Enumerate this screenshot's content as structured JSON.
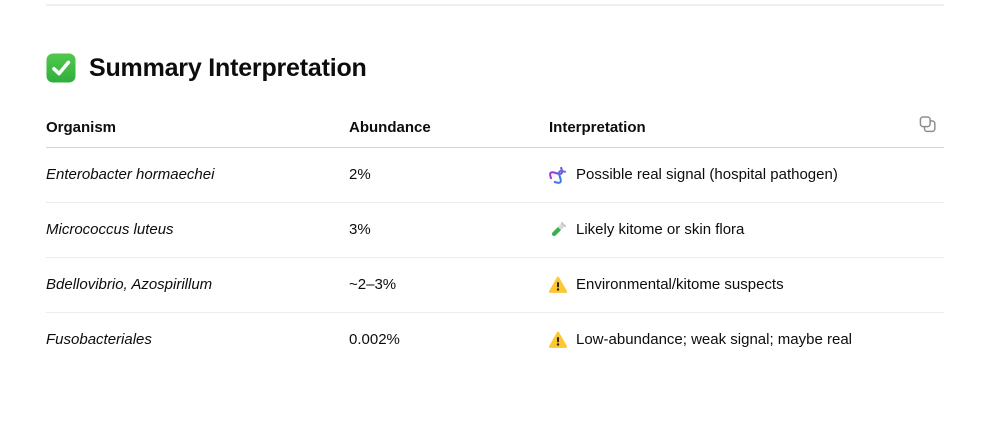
{
  "section": {
    "title": "Summary Interpretation",
    "title_icon": "check-mark-icon"
  },
  "table": {
    "headers": {
      "organism": "Organism",
      "abundance": "Abundance",
      "interpretation": "Interpretation"
    },
    "copy_button_icon": "copy-icon",
    "rows": [
      {
        "organism": "Enterobacter hormaechei",
        "abundance": "2%",
        "icon": "dna-icon",
        "interpretation": "Possible real signal (hospital pathogen)"
      },
      {
        "organism": "Micrococcus luteus",
        "abundance": "3%",
        "icon": "test-tube-icon",
        "interpretation": "Likely kitome or skin flora"
      },
      {
        "organism": "Bdellovibrio, Azospirillum",
        "abundance": "~2–3%",
        "icon": "warning-icon",
        "interpretation": "Environmental/kitome suspects"
      },
      {
        "organism": "Fusobacteriales",
        "abundance": "0.002%",
        "icon": "warning-icon",
        "interpretation": "Low-abundance; weak signal; maybe real"
      }
    ]
  },
  "colors": {
    "text": "#0d0d0d",
    "top_divider": "#efefef",
    "header_border": "#d3d3d3",
    "row_border": "#ececec",
    "check_green": "#3fbd46",
    "warning_yellow": "#fdc734",
    "dna_purple": "#9a3bd6",
    "dna_blue": "#3e7be0",
    "tube_green": "#35b34a",
    "copy_icon_gray": "#8d8d8d"
  }
}
